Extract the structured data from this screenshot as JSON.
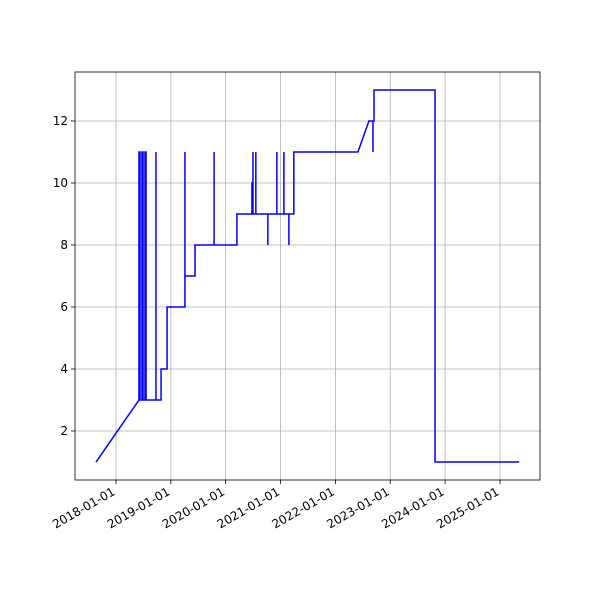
{
  "chart_data": {
    "type": "line",
    "x": [
      "2017-08-21",
      "2018-06-03",
      "2018-06-03",
      "2018-06-10",
      "2018-06-10",
      "2018-06-23",
      "2018-06-23",
      "2018-06-30",
      "2018-06-30",
      "2018-07-13",
      "2018-07-13",
      "2018-07-20",
      "2018-07-20",
      "2018-09-24",
      "2018-09-24",
      "2018-09-24",
      "2018-10-28",
      "2018-10-28",
      "2018-12-07",
      "2018-12-07",
      "2019-04-05",
      "2019-04-05",
      "2019-04-05",
      "2019-06-11",
      "2019-06-11",
      "2019-10-16",
      "2019-10-16",
      "2019-10-16",
      "2020-03-16",
      "2020-03-16",
      "2020-06-24",
      "2020-06-24",
      "2020-07-01",
      "2020-07-01",
      "2020-07-01",
      "2020-07-20",
      "2020-07-20",
      "2020-07-20",
      "2020-10-08",
      "2020-10-08",
      "2020-10-08",
      "2020-12-07",
      "2020-12-07",
      "2020-12-07",
      "2021-01-23",
      "2021-01-23",
      "2021-01-23",
      "2021-02-25",
      "2021-02-25",
      "2021-02-25",
      "2021-03-30",
      "2021-03-30",
      "2022-05-31",
      "2022-08-12",
      "2022-09-08",
      "2022-09-08",
      "2022-09-08",
      "2022-09-15",
      "2022-09-15",
      "2023-10-26",
      "2023-10-26",
      "2025-05-08"
    ],
    "series": [
      {
        "color": "#0000ff",
        "values": [
          1,
          3,
          11,
          11,
          3,
          3,
          11,
          11,
          3,
          3,
          11,
          11,
          3,
          3,
          11,
          3,
          3,
          4,
          4,
          6,
          6,
          11,
          7,
          7,
          8,
          8,
          11,
          8,
          8,
          9,
          9,
          10,
          10,
          11,
          9,
          9,
          11,
          9,
          9,
          8,
          9,
          9,
          11,
          9,
          9,
          11,
          9,
          9,
          8,
          9,
          9,
          11,
          11,
          12,
          12,
          11,
          12,
          12,
          13,
          13,
          1,
          1
        ]
      }
    ],
    "xlim": [
      "2017-04-03",
      "2025-09-24"
    ],
    "xticks": [
      "2018-01-01",
      "2019-01-01",
      "2020-01-01",
      "2021-01-01",
      "2022-01-01",
      "2023-01-01",
      "2024-01-01",
      "2025-01-01"
    ],
    "ylim": [
      0.42,
      13.58
    ],
    "yticks": [
      2,
      4,
      6,
      8,
      10,
      12
    ],
    "grid": true
  }
}
